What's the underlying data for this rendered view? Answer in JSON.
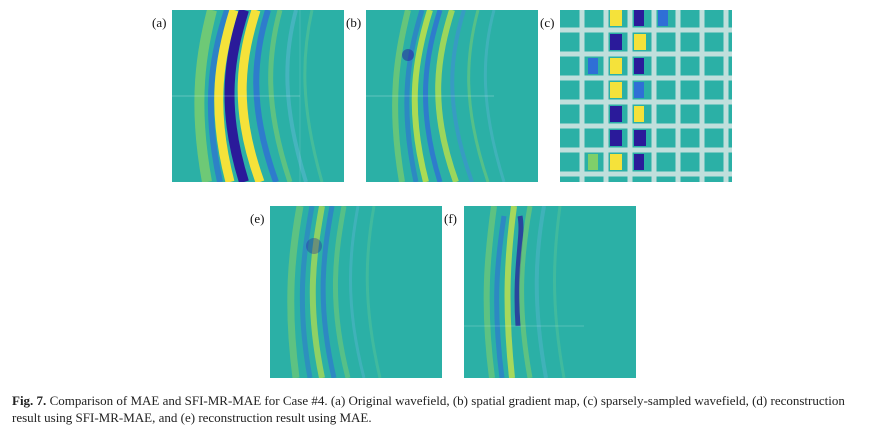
{
  "panels": [
    {
      "id": "a",
      "label": "(a)"
    },
    {
      "id": "b",
      "label": "(b)"
    },
    {
      "id": "c",
      "label": "(c)"
    },
    {
      "id": "e",
      "label": "(e)"
    },
    {
      "id": "f",
      "label": "(f)"
    }
  ],
  "caption": {
    "fig_id": "Fig. 7.",
    "text": "Comparison of MAE and SFI-MR-MAE for Case #4. (a) Original wavefield, (b) spatial gradient map, (c) sparsely-sampled wavefield, (d) reconstruction result using SFI-MR-MAE, and (e) reconstruction result using MAE."
  },
  "colors": {
    "background_teal": "#2bb0a6",
    "yellow": "#f5e23a",
    "dark_blue": "#2a1a9a",
    "blue": "#2f6fd6",
    "light_green": "#7fcf6a"
  }
}
